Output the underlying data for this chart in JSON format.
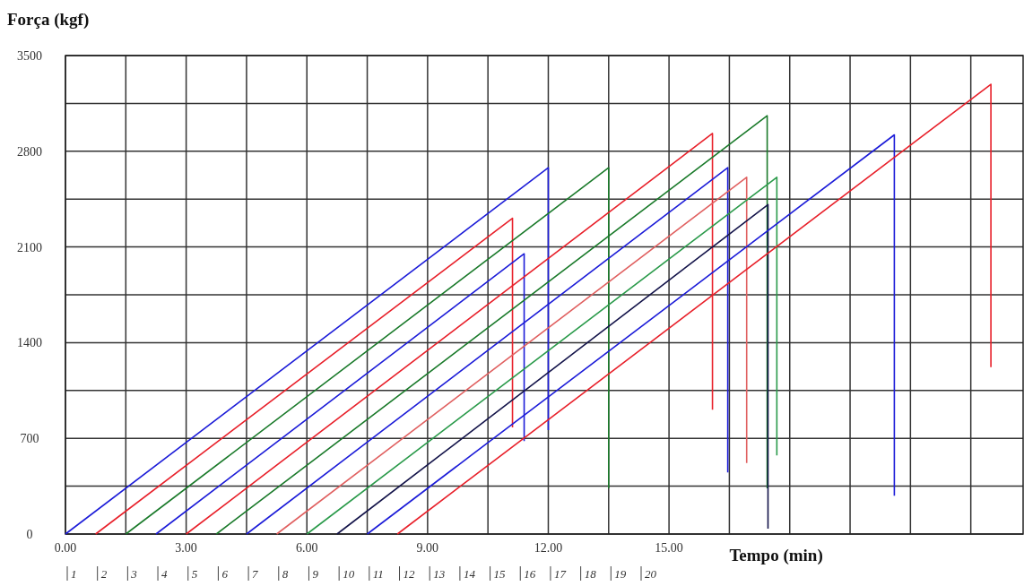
{
  "chart_data": {
    "type": "line",
    "xlabel": "Tempo (min)",
    "ylabel": "Força (kgf)",
    "xlim": [
      0,
      23.8
    ],
    "xticks": [
      {
        "value": 0,
        "label": "0.00"
      },
      {
        "value": 1.5,
        "label": null
      },
      {
        "value": 3,
        "label": "3.00"
      },
      {
        "value": 4.5,
        "label": null
      },
      {
        "value": 6,
        "label": "6.00"
      },
      {
        "value": 7.5,
        "label": null
      },
      {
        "value": 9,
        "label": "9.00"
      },
      {
        "value": 10.5,
        "label": null
      },
      {
        "value": 12,
        "label": "12.00"
      },
      {
        "value": 13.5,
        "label": null
      },
      {
        "value": 15,
        "label": "15.00"
      },
      {
        "value": 16.5,
        "label": null
      },
      {
        "value": 18,
        "label": null
      },
      {
        "value": 19.5,
        "label": null
      },
      {
        "value": 21,
        "label": null
      },
      {
        "value": 22.5,
        "label": null
      }
    ],
    "x2lim": [
      1,
      20
    ],
    "x2ticks": [
      1,
      2,
      3,
      4,
      5,
      6,
      7,
      8,
      9,
      10,
      11,
      12,
      13,
      14,
      15,
      16,
      17,
      18,
      19,
      20
    ],
    "ylim": [
      0,
      3500
    ],
    "yticks": [
      0,
      {
        "value": 350,
        "label": null
      },
      700,
      {
        "value": 1050,
        "label": null
      },
      1400,
      {
        "value": 1750,
        "label": null
      },
      2100,
      {
        "value": 2450,
        "label": null
      },
      2800,
      {
        "value": 3150,
        "label": null
      },
      3500
    ],
    "grid": true,
    "marker": "none",
    "line_style": "solid",
    "series": [
      {
        "color": "#1c1cd8",
        "x": [
          0,
          12.0,
          12.0
        ],
        "values": [
          0,
          2680,
          760
        ]
      },
      {
        "color": "#e8202a",
        "x": [
          0.75,
          11.11,
          11.11
        ],
        "values": [
          0,
          2310,
          780
        ]
      },
      {
        "color": "#1a7a2a",
        "x": [
          1.5,
          13.5,
          13.5
        ],
        "values": [
          0,
          2680,
          335
        ]
      },
      {
        "color": "#1c1cd8",
        "x": [
          2.25,
          11.4,
          11.4
        ],
        "values": [
          0,
          2050,
          680
        ]
      },
      {
        "color": "#e8202a",
        "x": [
          3,
          16.08,
          16.08
        ],
        "values": [
          0,
          2930,
          910
        ]
      },
      {
        "color": "#1a7a2a",
        "x": [
          3.75,
          17.44,
          17.44
        ],
        "values": [
          0,
          3060,
          335
        ]
      },
      {
        "color": "#1c1cd8",
        "x": [
          4.5,
          16.46,
          16.46
        ],
        "values": [
          0,
          2680,
          450
        ]
      },
      {
        "color": "#e06060",
        "x": [
          5.25,
          16.93,
          16.93
        ],
        "values": [
          0,
          2610,
          520
        ]
      },
      {
        "color": "#2a9a4a",
        "x": [
          6,
          17.68,
          17.68
        ],
        "values": [
          0,
          2610,
          575
        ]
      },
      {
        "color": "#14144a",
        "x": [
          6.75,
          17.46,
          17.46
        ],
        "values": [
          0,
          2410,
          40
        ]
      },
      {
        "color": "#1c1cd8",
        "x": [
          7.5,
          20.6,
          20.6
        ],
        "values": [
          0,
          2920,
          280
        ]
      },
      {
        "color": "#e8202a",
        "x": [
          8.25,
          23.0,
          23.0
        ],
        "values": [
          0,
          3290,
          1220
        ]
      }
    ]
  }
}
